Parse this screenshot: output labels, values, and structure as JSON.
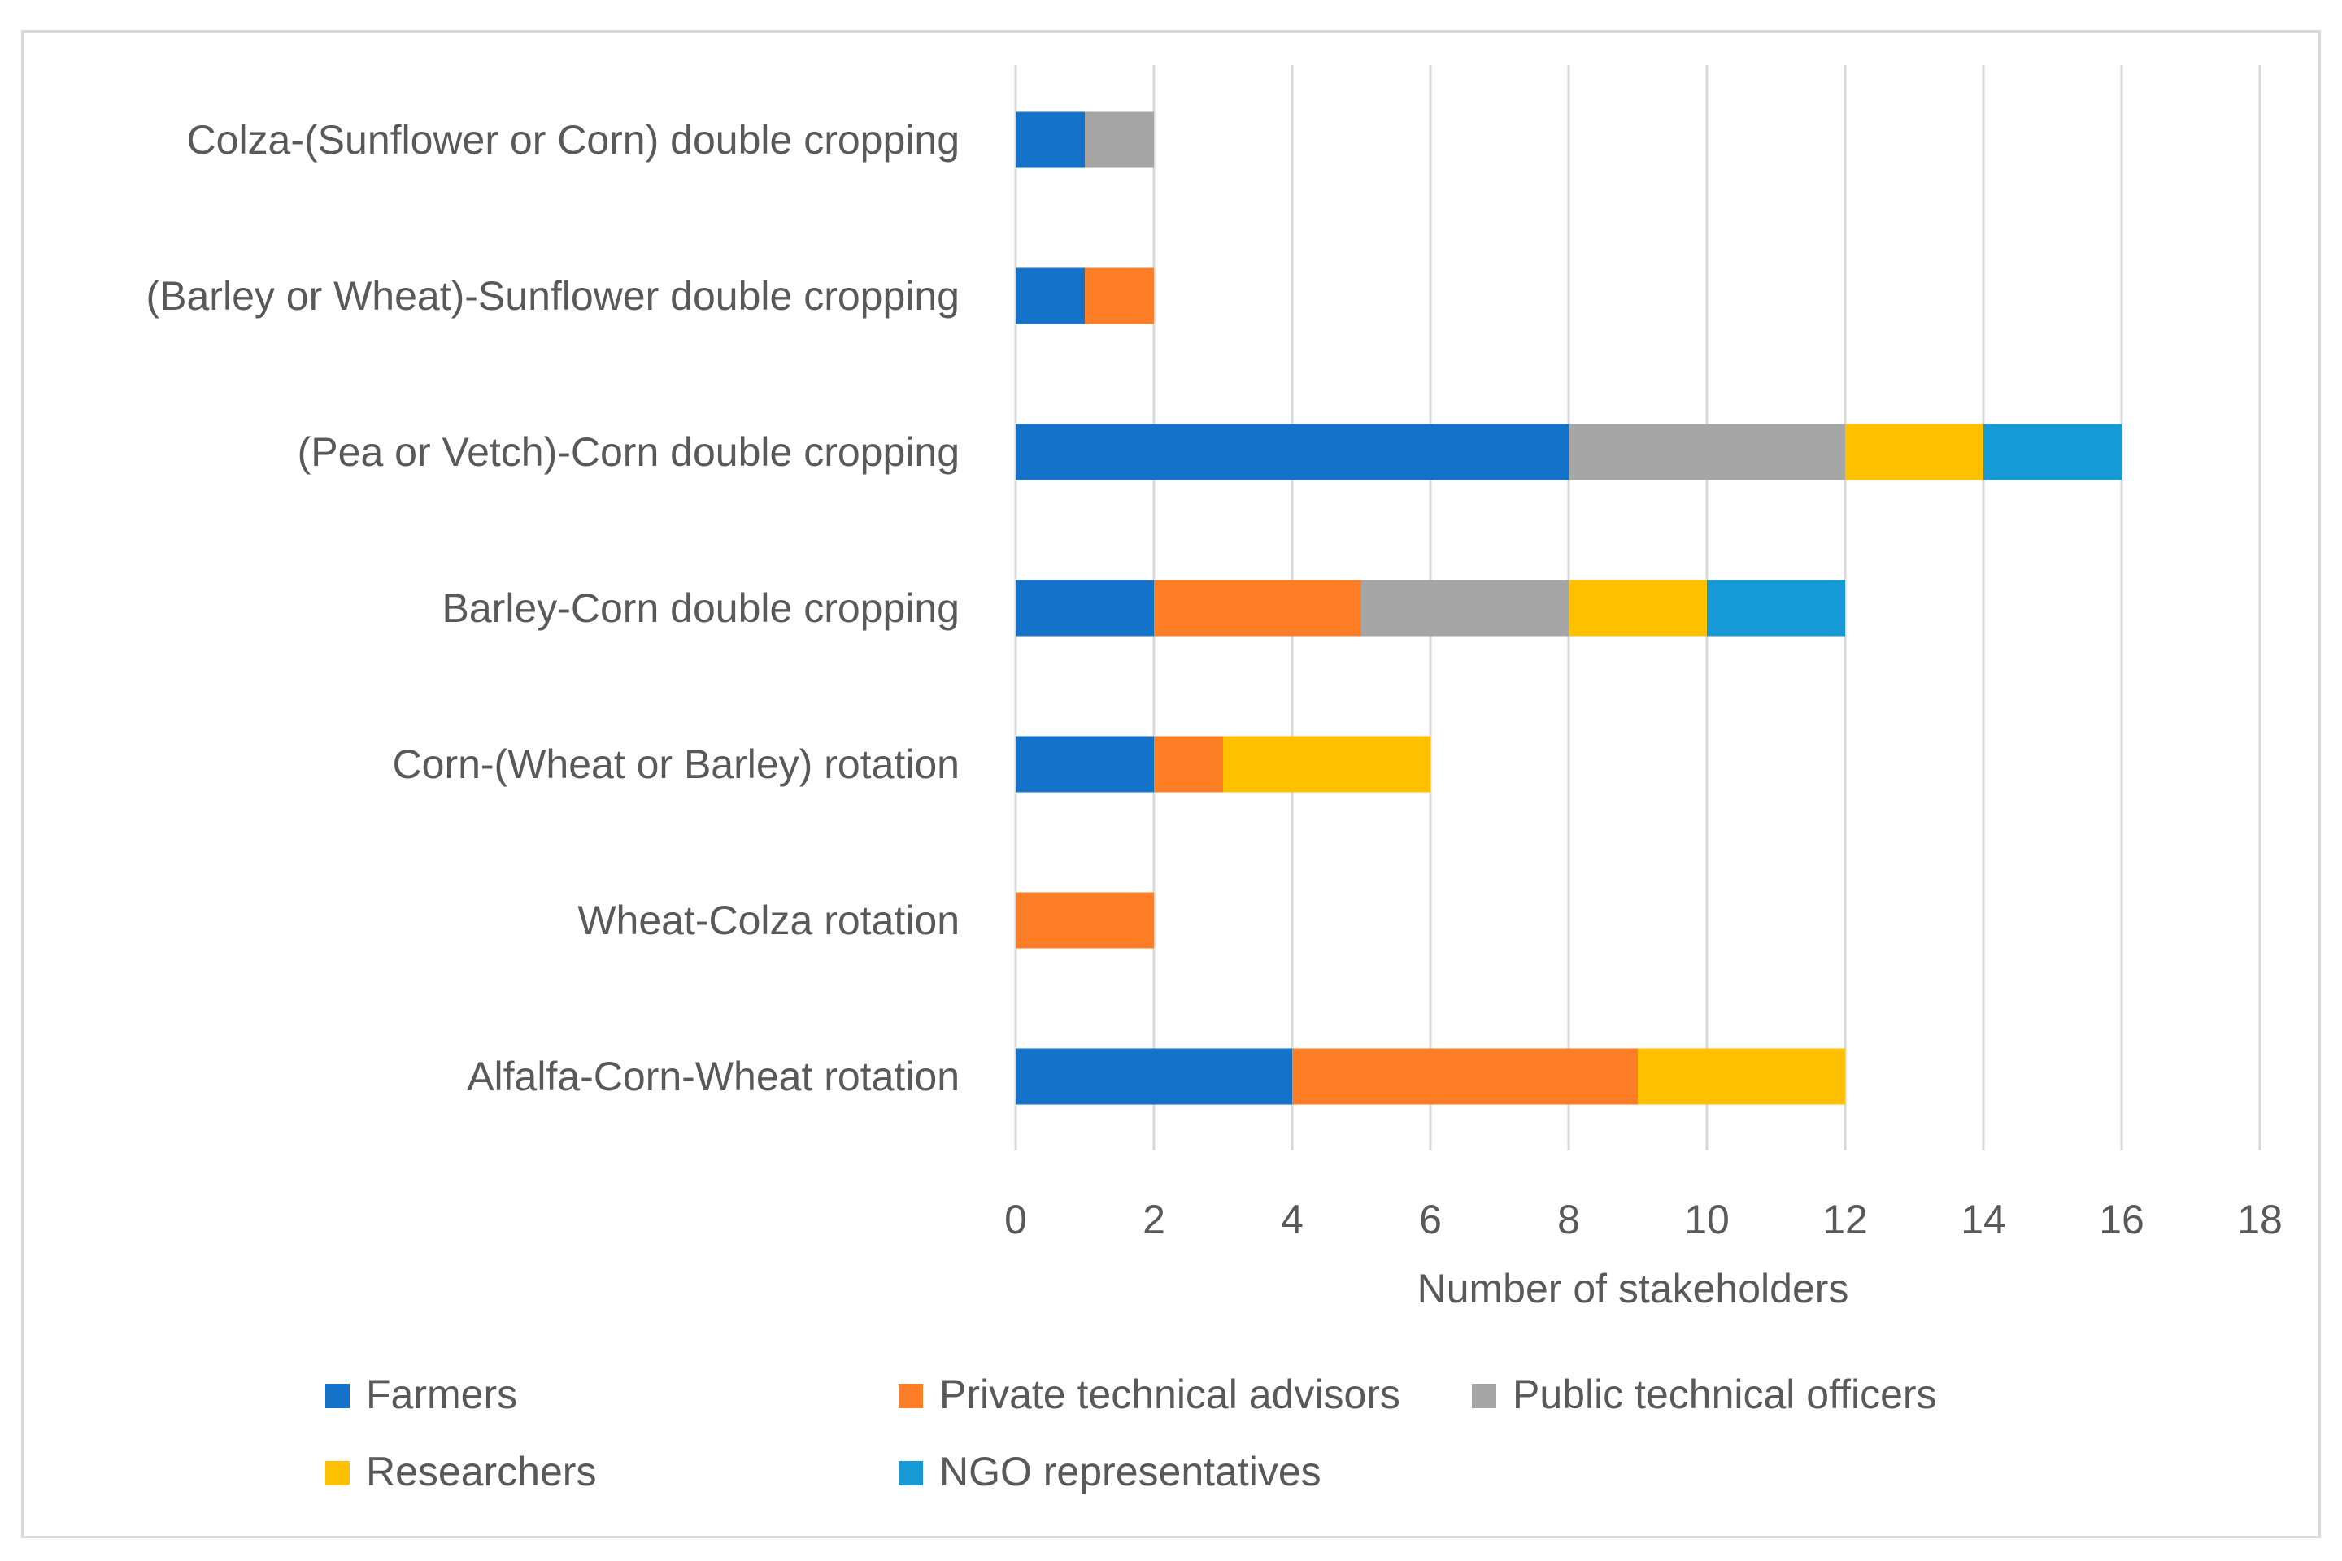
{
  "chart_data": {
    "type": "bar",
    "orientation": "horizontal",
    "stacked": true,
    "categories": [
      "Colza-(Sunflower or Corn) double cropping",
      "(Barley or Wheat)-Sunflower double cropping",
      "(Pea or Vetch)-Corn double cropping",
      "Barley-Corn double cropping",
      "Corn-(Wheat or Barley) rotation",
      "Wheat-Colza rotation",
      "Alfalfa-Corn-Wheat rotation"
    ],
    "series": [
      {
        "name": "Farmers",
        "color": "#1473c8",
        "values": [
          1,
          1,
          8,
          2,
          2,
          0,
          4
        ]
      },
      {
        "name": "Private technical advisors",
        "color": "#fd7e27",
        "values": [
          0,
          1,
          0,
          3,
          1,
          2,
          5
        ]
      },
      {
        "name": "Public technical officers",
        "color": "#a6a6a6",
        "values": [
          1,
          0,
          4,
          3,
          0,
          0,
          0
        ]
      },
      {
        "name": "Researchers",
        "color": "#ffc000",
        "values": [
          0,
          0,
          2,
          2,
          3,
          0,
          3
        ]
      },
      {
        "name": "NGO representatives",
        "color": "#169ad6",
        "values": [
          0,
          0,
          2,
          2,
          0,
          0,
          0
        ]
      }
    ],
    "xlabel": "Number of stakeholders",
    "ylabel": "",
    "xlim": [
      0,
      18
    ],
    "xticks": [
      "0",
      "2",
      "4",
      "6",
      "8",
      "10",
      "12",
      "14",
      "16",
      "18"
    ],
    "grid": "vertical",
    "legend": "bottom"
  }
}
